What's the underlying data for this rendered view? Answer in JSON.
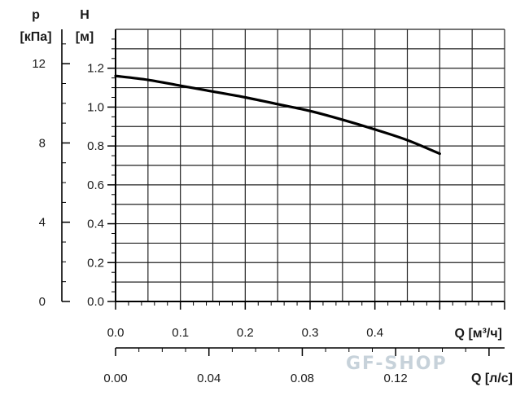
{
  "chart_data": {
    "type": "line",
    "series": [
      {
        "x": [
          0.0,
          0.05,
          0.1,
          0.15,
          0.2,
          0.25,
          0.3,
          0.35,
          0.4,
          0.45,
          0.5
        ],
        "values": [
          1.16,
          1.14,
          1.11,
          1.08,
          1.05,
          1.015,
          0.98,
          0.935,
          0.885,
          0.83,
          0.76
        ]
      }
    ],
    "xlabel_top": "Q [м³/ч]",
    "xlabel_bottom": "Q [л/с]",
    "ylabel_h_symbol": "H",
    "ylabel_h_unit": "[м]",
    "ylabel_p_symbol": "p",
    "ylabel_p_unit": "[кПа]",
    "xlim": [
      0,
      0.6
    ],
    "ylim": [
      0,
      1.4
    ],
    "x_ticks": [
      "0.0",
      "0.1",
      "0.2",
      "0.3",
      "0.4"
    ],
    "x_ls_ticks": [
      "0.00",
      "0.04",
      "0.08",
      "0.12"
    ],
    "y_ticks": [
      "0.0",
      "0.2",
      "0.4",
      "0.6",
      "0.8",
      "1.0",
      "1.2"
    ],
    "p_ticks": [
      "0",
      "4",
      "8",
      "12"
    ],
    "grid": true,
    "watermark": "GF-SHOP"
  }
}
